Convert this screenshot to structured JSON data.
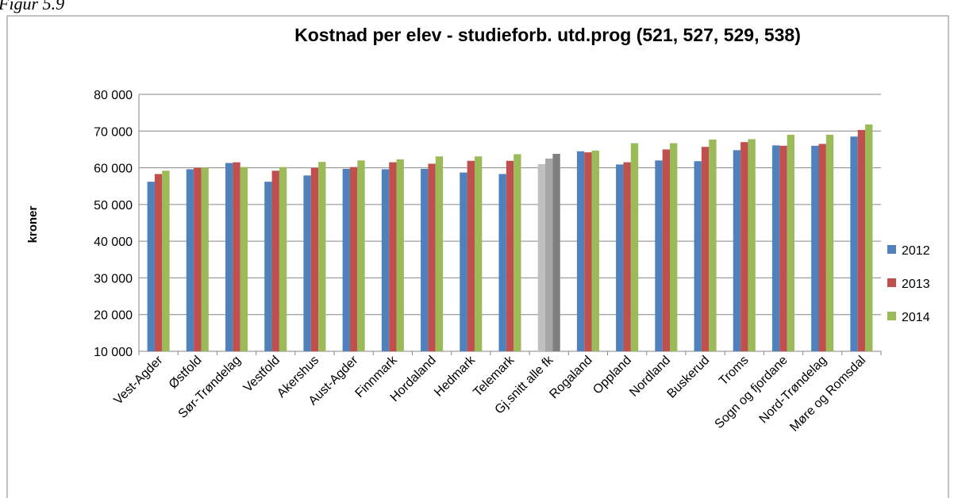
{
  "caption": "Figur 5.9",
  "chart_data": {
    "type": "bar",
    "title": "Kostnad per elev - studieforb. utd.prog (521, 527, 529, 538)",
    "ylabel": "kroner",
    "categories": [
      "Vest-Agder",
      "Østfold",
      "Sør-Trøndelag",
      "Vestfold",
      "Akershus",
      "Aust-Agder",
      "Finnmark",
      "Hordaland",
      "Hedmark",
      "Telemark",
      "Gj.snitt alle fk",
      "Rogaland",
      "Oppland",
      "Nordland",
      "Buskerud",
      "Troms",
      "Sogn og fjordane",
      "Nord-Trøndelag",
      "Møre og Romsdal"
    ],
    "series": [
      {
        "name": "2012",
        "color": "#4f81bd",
        "values": [
          56200,
          59600,
          61300,
          56200,
          57900,
          59700,
          59600,
          59700,
          58700,
          58300,
          61000,
          64500,
          60900,
          62000,
          61800,
          64800,
          66100,
          66000,
          68500
        ]
      },
      {
        "name": "2013",
        "color": "#c0504d",
        "values": [
          58300,
          60000,
          61500,
          59200,
          60000,
          60200,
          61500,
          61100,
          61900,
          61900,
          62500,
          64200,
          61500,
          65000,
          65700,
          67000,
          66000,
          66500,
          70300
        ]
      },
      {
        "name": "2014",
        "color": "#9bbb59",
        "values": [
          59200,
          60000,
          60200,
          60200,
          61600,
          62000,
          62300,
          63100,
          63100,
          63700,
          63800,
          64700,
          66700,
          66700,
          67700,
          67800,
          69000,
          69000,
          71800
        ]
      }
    ],
    "highlight": {
      "category_index": 10,
      "colors": [
        "#c0c0c0",
        "#a6a6a6",
        "#7f7f7f"
      ]
    },
    "ylim": [
      10000,
      80000
    ],
    "yticks": [
      {
        "value": 10000,
        "label": "10 000"
      },
      {
        "value": 20000,
        "label": "20 000"
      },
      {
        "value": 30000,
        "label": "30 000"
      },
      {
        "value": 40000,
        "label": "40 000"
      },
      {
        "value": 50000,
        "label": "50 000"
      },
      {
        "value": 60000,
        "label": "60 000"
      },
      {
        "value": 70000,
        "label": "70 000"
      },
      {
        "value": 80000,
        "label": "80 000"
      }
    ],
    "grid": true,
    "legend": "right"
  }
}
